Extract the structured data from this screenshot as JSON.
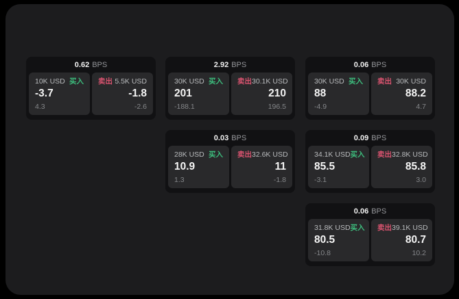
{
  "window": {
    "background": "#000000",
    "panel_background": "#1c1c1e"
  },
  "labels": {
    "buy": "买入",
    "sell": "卖出",
    "bps_suffix": "BPS"
  },
  "colors": {
    "buy_green": "#3dbd7d",
    "sell_red": "#d9536f",
    "card_background": "#111113",
    "subpanel_background": "#29292b",
    "value_text": "#f5f5f5",
    "muted_text": "#85878a",
    "amount_text": "#b9bbbd"
  },
  "cards": [
    {
      "row": 0,
      "col": 0,
      "bps": "0.62",
      "buy": {
        "amount": "10K USD",
        "value": "-3.7",
        "sub": "4.3"
      },
      "sell": {
        "amount": "5.5K USD",
        "value": "-1.8",
        "sub": "-2.6"
      }
    },
    {
      "row": 0,
      "col": 1,
      "bps": "2.92",
      "buy": {
        "amount": "30K USD",
        "value": "201",
        "sub": "-188.1"
      },
      "sell": {
        "amount": "30.1K USD",
        "value": "210",
        "sub": "196.5"
      }
    },
    {
      "row": 0,
      "col": 2,
      "bps": "0.06",
      "buy": {
        "amount": "30K USD",
        "value": "88",
        "sub": "-4.9"
      },
      "sell": {
        "amount": "30K USD",
        "value": "88.2",
        "sub": "4.7"
      }
    },
    {
      "row": 1,
      "col": 1,
      "bps": "0.03",
      "buy": {
        "amount": "28K USD",
        "value": "10.9",
        "sub": "1.3"
      },
      "sell": {
        "amount": "32.6K USD",
        "value": "11",
        "sub": "-1.8"
      }
    },
    {
      "row": 1,
      "col": 2,
      "bps": "0.09",
      "buy": {
        "amount": "34.1K USD",
        "value": "85.5",
        "sub": "-3.1"
      },
      "sell": {
        "amount": "32.8K USD",
        "value": "85.8",
        "sub": "3.0"
      }
    },
    {
      "row": 2,
      "col": 2,
      "bps": "0.06",
      "buy": {
        "amount": "31.8K USD",
        "value": "80.5",
        "sub": "-10.8"
      },
      "sell": {
        "amount": "39.1K USD",
        "value": "80.7",
        "sub": "10.2"
      }
    }
  ]
}
